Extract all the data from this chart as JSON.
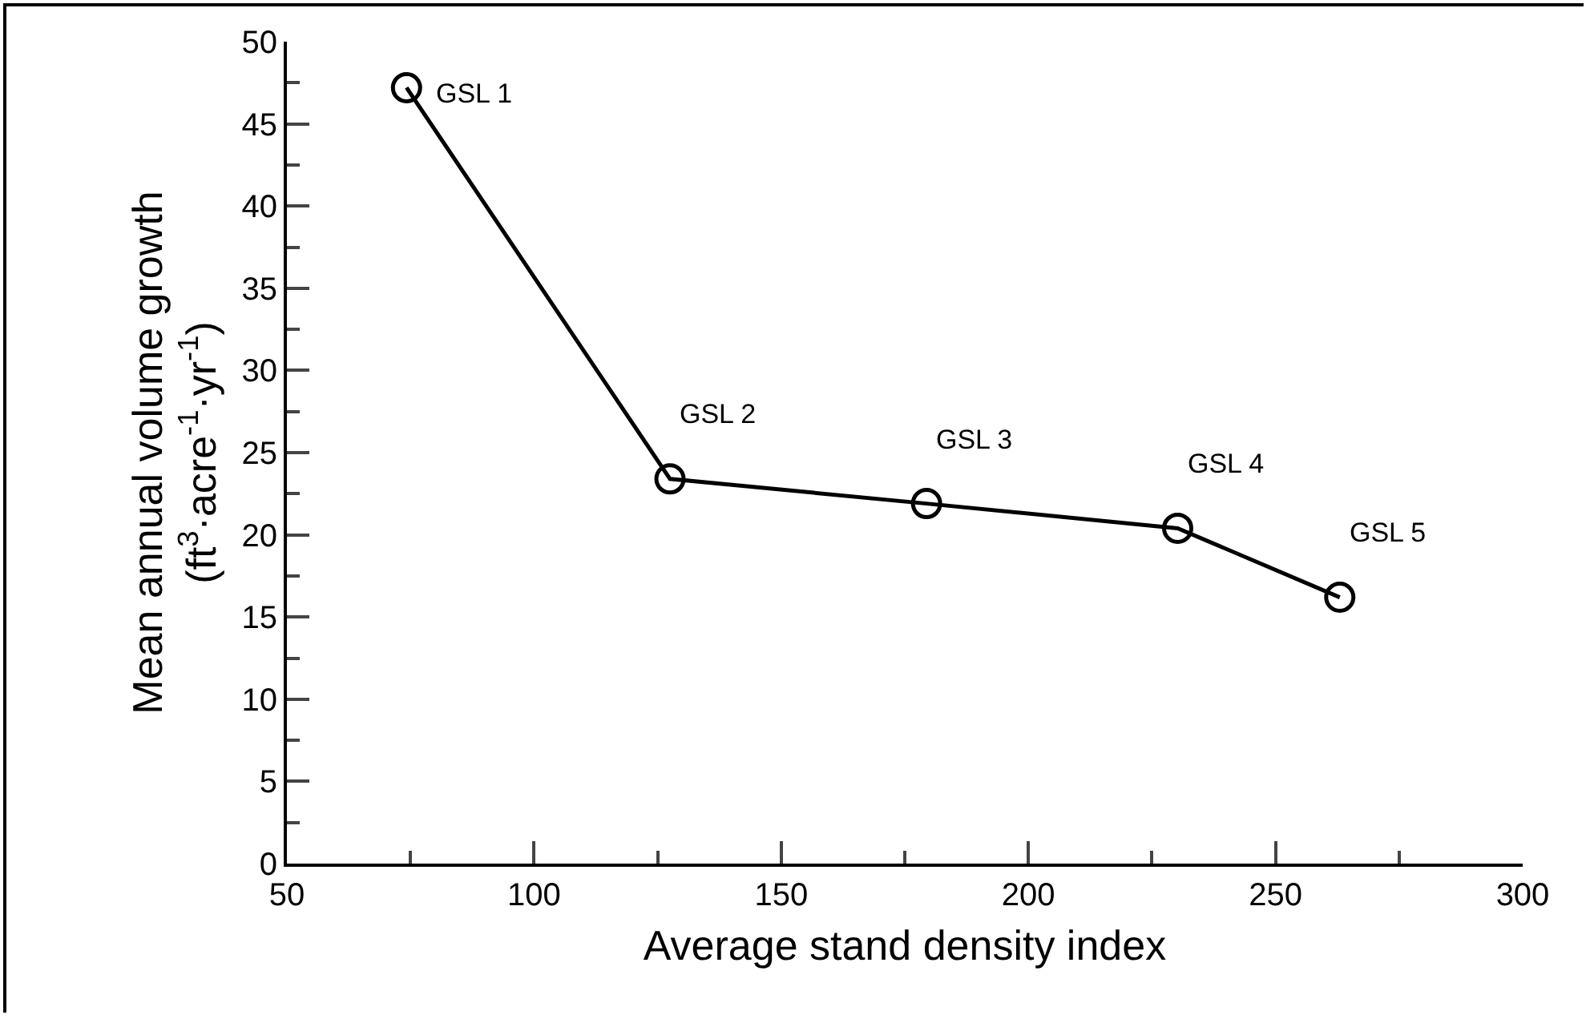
{
  "chart_data": {
    "type": "line",
    "xlabel": "Average stand density index",
    "ylabel": "Mean annual volume growth\n(ft$^{3}$·acre$^{-1}$·yr$^{-1}$)",
    "x": [
      74.2,
      127.5,
      179.4,
      230.2,
      263.0
    ],
    "series": [
      {
        "color": "#000000",
        "values": [
          47.2,
          23.4,
          21.9,
          20.4,
          16.2
        ]
      }
    ],
    "marker": "circle",
    "line_style": "solid",
    "xlim": [
      50,
      300
    ],
    "xticks": [
      50,
      100,
      150,
      200,
      250,
      300
    ],
    "ylim": [
      0,
      50
    ],
    "yticks": [
      0,
      5,
      10,
      15,
      20,
      25,
      30,
      35,
      40,
      45,
      50
    ],
    "annotations": [
      {
        "text": "GSL 1",
        "x": 74.2,
        "y": 47.2
      },
      {
        "text": "GSL 2",
        "x": 127.5,
        "y": 23.4
      },
      {
        "text": "GSL 3",
        "x": 179.4,
        "y": 21.9
      },
      {
        "text": "GSL 4",
        "x": 230.2,
        "y": 20.4
      },
      {
        "text": "GSL 5",
        "x": 263.0,
        "y": 16.2
      }
    ]
  }
}
